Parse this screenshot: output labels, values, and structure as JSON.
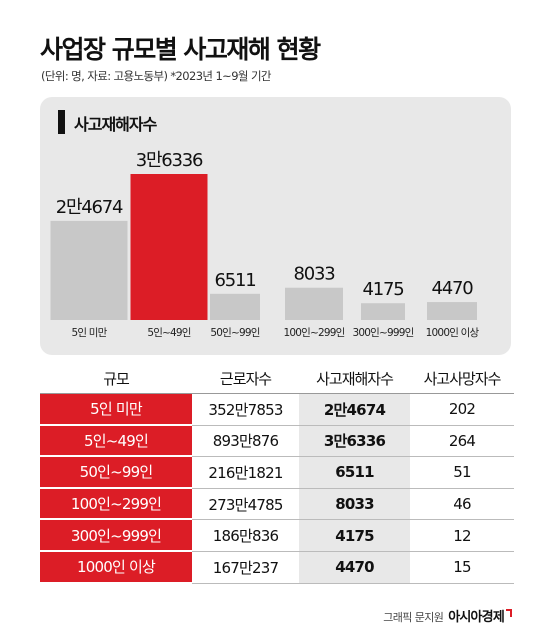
{
  "title": "사업장 규모별 사고재해 현황",
  "subtitle": "(단위: 명, 자료: 고용노동부) *2023년 1~9월 기간",
  "colors": {
    "accent": "#dc1d26",
    "bar": "#c8c8c8",
    "panel": "#e8e8e8"
  },
  "chart_data": {
    "type": "bar",
    "title": "사고재해자수",
    "categories": [
      "5인 미만",
      "5인~49인",
      "50인~99인",
      "100인~299인",
      "300인~999인",
      "1000인 이상"
    ],
    "values": [
      24674,
      36336,
      6511,
      8033,
      4175,
      4470
    ],
    "value_labels": [
      "2만4674",
      "3만6336",
      "6511",
      "8033",
      "4175",
      "4470"
    ],
    "highlight_index": 1,
    "ylim": [
      0,
      36336
    ],
    "grid": false,
    "legend": "none"
  },
  "table": {
    "headers": [
      "규모",
      "근로자수",
      "사고재해자수",
      "사고사망자수"
    ],
    "rows": [
      [
        "5인 미만",
        "352만7853",
        "2만4674",
        "202"
      ],
      [
        "5인~49인",
        "893만876",
        "3만6336",
        "264"
      ],
      [
        "50인~99인",
        "216만1821",
        "6511",
        "51"
      ],
      [
        "100인~299인",
        "273만4785",
        "8033",
        "46"
      ],
      [
        "300인~999인",
        "186만836",
        "4175",
        "12"
      ],
      [
        "1000인 이상",
        "167만237",
        "4470",
        "15"
      ]
    ]
  },
  "credit": {
    "text": "그래픽 문지원",
    "brand": "아시아경제"
  }
}
